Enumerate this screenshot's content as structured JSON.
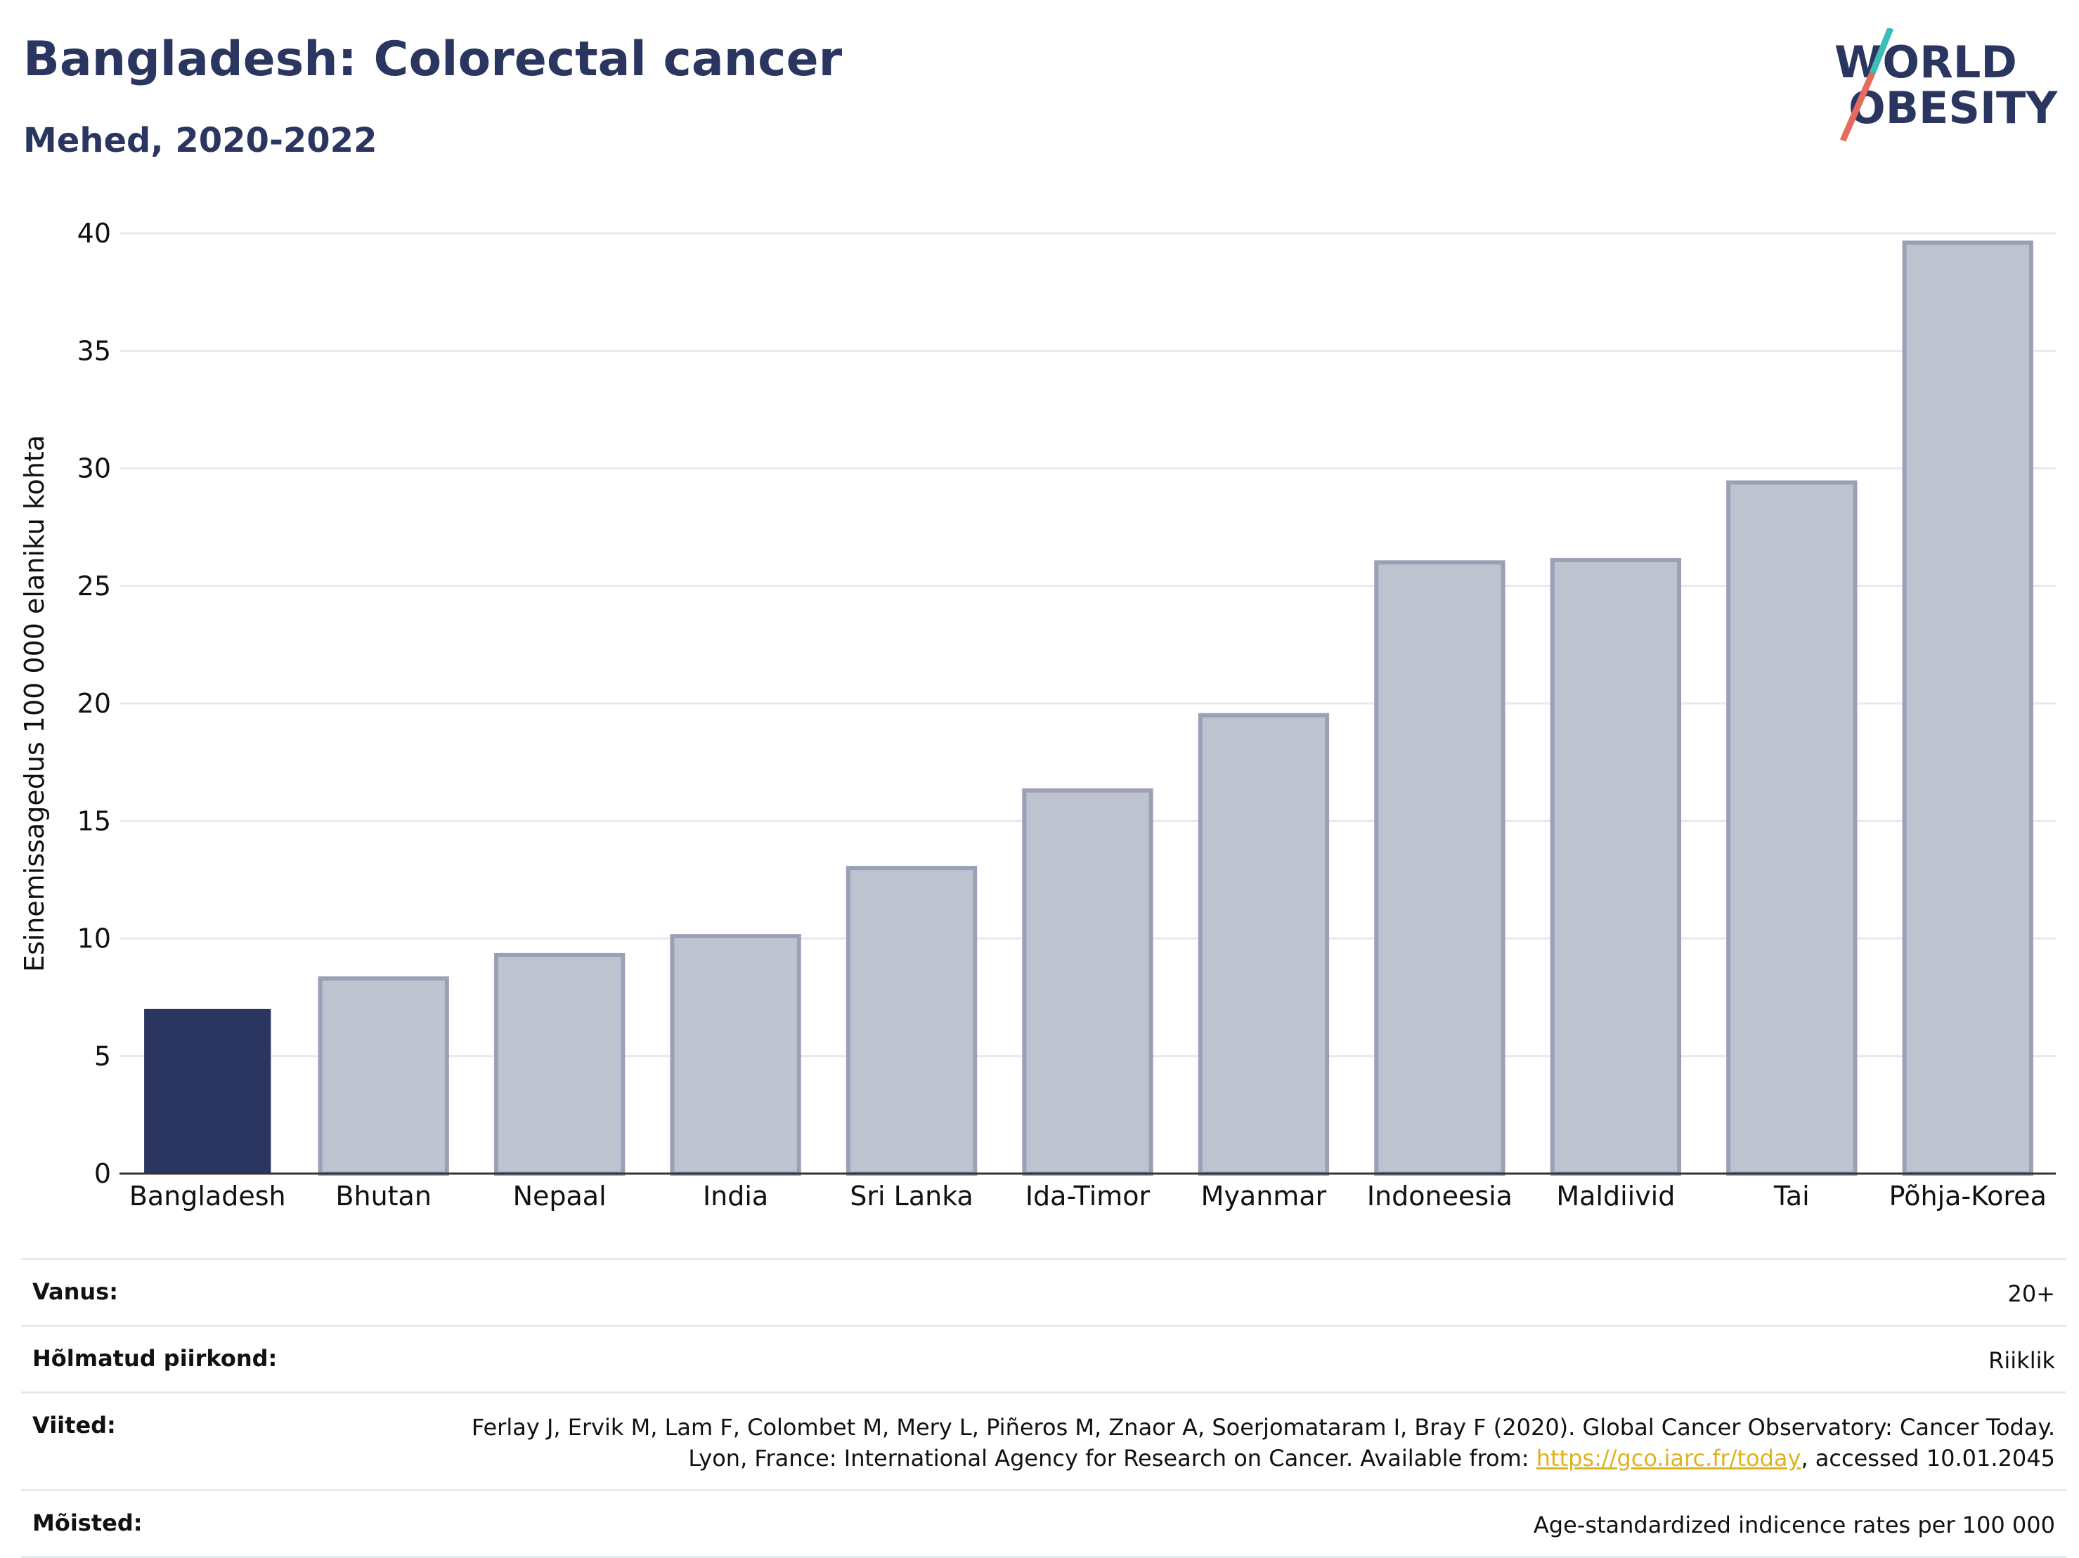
{
  "header": {
    "title": "Bangladesh: Colorectal cancer",
    "subtitle": "Mehed, 2020-2022"
  },
  "logo": {
    "line1": "WORLD",
    "line2": "OBESITY"
  },
  "colors": {
    "highlight": "#2b3660",
    "bar_fill": "#bfc3d0",
    "bar_stroke": "#9aa0b6",
    "grid": "#e6e9ee",
    "axis": "#333333"
  },
  "chart_data": {
    "type": "bar",
    "title": "",
    "xlabel": "",
    "ylabel": "Esinemissagedus 100 000 elaniku kohta",
    "ylim": [
      0,
      40
    ],
    "yticks": [
      0,
      5,
      10,
      15,
      20,
      25,
      30,
      35,
      40
    ],
    "grid": true,
    "categories": [
      "Bangladesh",
      "Bhutan",
      "Nepaal",
      "India",
      "Sri Lanka",
      "Ida-Timor",
      "Myanmar",
      "Indoneesia",
      "Maldiivid",
      "Tai",
      "Põhja-Korea"
    ],
    "values": [
      7.0,
      8.3,
      9.3,
      10.1,
      13.0,
      16.3,
      19.5,
      26.0,
      26.1,
      29.4,
      39.6
    ],
    "highlight": "Bangladesh"
  },
  "meta": {
    "age": {
      "label": "Vanus:",
      "value": "20+"
    },
    "regions": {
      "label": "Hõlmatud piirkond:",
      "value": "Riiklik"
    },
    "refs": {
      "label": "Viited:",
      "text_before": "Ferlay J, Ervik M, Lam F, Colombet M, Mery L, Piñeros M, Znaor A, Soerjomataram I, Bray F (2020). Global Cancer Observatory: Cancer Today. Lyon, France: International Agency for Research on Cancer. Available from: ",
      "link": "https://gco.iarc.fr/today",
      "text_after": ", accessed 10.01.2045"
    },
    "definitions": {
      "label": "Mõisted:",
      "value": "Age-standardized indicence rates per 100 000"
    }
  }
}
